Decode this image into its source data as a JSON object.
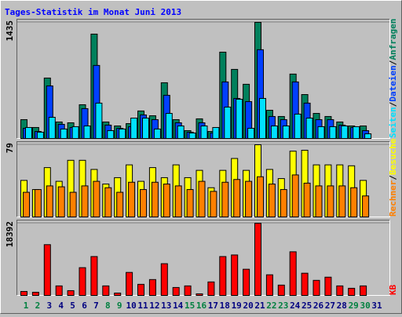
{
  "chart_data": [
    {
      "type": "bar",
      "title": "Tages-Statistik im Monat Juni 2013",
      "separator": "/",
      "ylim": [
        0,
        1435
      ],
      "yticks": [
        1435
      ],
      "series": [
        {
          "name": "Anfragen",
          "color": "#00805c",
          "values": [
            233,
            136,
            747,
            204,
            194,
            417,
            1290,
            204,
            155,
            184,
            340,
            281,
            689,
            233,
            97,
            243,
            87,
            1067,
            854,
            670,
            1435,
            349,
            272,
            796,
            543,
            310,
            272,
            204,
            155,
            155,
            0
          ]
        },
        {
          "name": "Dateien",
          "color": "#0040ff",
          "values": [
            126,
            87,
            650,
            175,
            136,
            369,
            903,
            165,
            126,
            146,
            291,
            233,
            534,
            194,
            78,
            194,
            68,
            699,
            495,
            456,
            1097,
            272,
            233,
            699,
            437,
            233,
            233,
            165,
            136,
            97,
            0
          ]
        },
        {
          "name": "Seiten",
          "color": "#00e0ff",
          "values": [
            136,
            78,
            262,
            117,
            146,
            155,
            437,
            97,
            117,
            252,
            252,
            117,
            310,
            155,
            68,
            155,
            136,
            388,
            485,
            126,
            495,
            155,
            155,
            301,
            252,
            146,
            146,
            155,
            146,
            58,
            0
          ]
        }
      ]
    },
    {
      "type": "bar",
      "separator": "/",
      "ylim": [
        0,
        79
      ],
      "yticks": [
        79
      ],
      "series": [
        {
          "name": "Besuche",
          "color": "#ffff00",
          "values": [
            40,
            30,
            54,
            39,
            62,
            62,
            52,
            36,
            43,
            57,
            39,
            54,
            43,
            57,
            43,
            51,
            32,
            51,
            64,
            51,
            79,
            52,
            42,
            72,
            73,
            57,
            57,
            57,
            56,
            40,
            0
          ]
        },
        {
          "name": "Rechner",
          "color": "#ff8000",
          "values": [
            27,
            30,
            34,
            33,
            27,
            34,
            39,
            32,
            27,
            38,
            30,
            38,
            36,
            34,
            30,
            39,
            28,
            38,
            41,
            39,
            44,
            36,
            30,
            46,
            37,
            34,
            34,
            34,
            32,
            23,
            0
          ]
        }
      ]
    },
    {
      "type": "bar",
      "ylim": [
        0,
        18392
      ],
      "yticks": [
        18392
      ],
      "categories": [
        "1",
        "2",
        "3",
        "4",
        "5",
        "6",
        "7",
        "8",
        "9",
        "10",
        "11",
        "12",
        "13",
        "14",
        "15",
        "16",
        "17",
        "18",
        "19",
        "20",
        "21",
        "22",
        "23",
        "24",
        "25",
        "26",
        "27",
        "28",
        "29",
        "30",
        "31"
      ],
      "label_colors": [
        "#008040",
        "#008040",
        "#000080",
        "#000080",
        "#000080",
        "#000080",
        "#000080",
        "#008040",
        "#008040",
        "#000080",
        "#000080",
        "#000080",
        "#000080",
        "#000080",
        "#008040",
        "#008040",
        "#000080",
        "#000080",
        "#000080",
        "#000080",
        "#000080",
        "#008040",
        "#008040",
        "#000080",
        "#000080",
        "#000080",
        "#000080",
        "#000080",
        "#008040",
        "#008040",
        "#000080"
      ],
      "series": [
        {
          "name": "KB",
          "color": "#ff0000",
          "values": [
            1010,
            808,
            12935,
            2425,
            1213,
            7074,
            9904,
            2425,
            606,
            5861,
            2830,
            4042,
            8085,
            2021,
            2425,
            404,
            3436,
            9904,
            10308,
            6670,
            18392,
            5255,
            2628,
            11117,
            5659,
            3840,
            4649,
            2425,
            1819,
            2425,
            0
          ]
        }
      ]
    }
  ]
}
